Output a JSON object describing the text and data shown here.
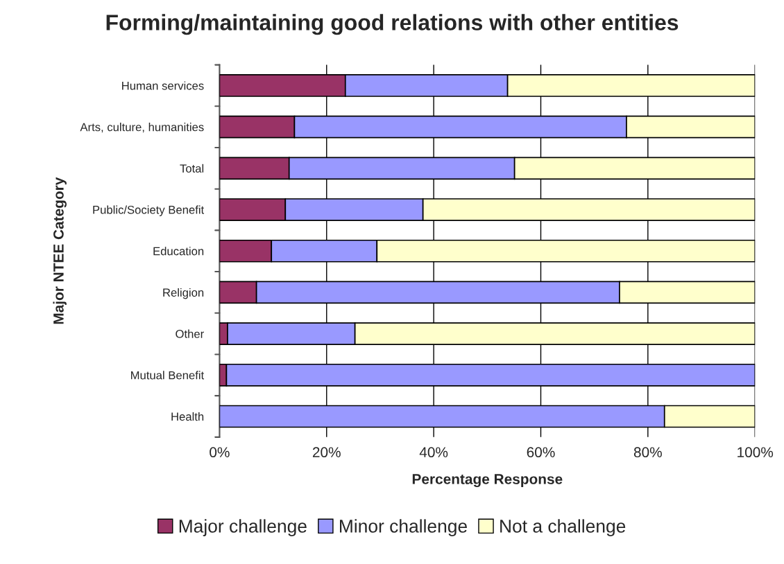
{
  "chart_data": {
    "type": "bar",
    "orientation": "horizontal",
    "stacked": true,
    "title": "Forming/maintaining good relations with other entities",
    "xlabel": "Percentage Response",
    "ylabel": "Major NTEE Category",
    "categories": [
      "Human services",
      "Arts, culture, humanities",
      "Total",
      "Public/Society Benefit",
      "Education",
      "Religion",
      "Other",
      "Mutual Benefit",
      "Health"
    ],
    "series": [
      {
        "name": "Major challenge",
        "color": "#993366",
        "values": [
          23.5,
          14.0,
          13.0,
          12.3,
          9.7,
          6.9,
          1.5,
          1.3,
          0
        ]
      },
      {
        "name": "Minor challenge",
        "color": "#9999ff",
        "values": [
          30.3,
          62.0,
          42.1,
          25.7,
          19.7,
          67.8,
          23.8,
          98.7,
          83.1
        ]
      },
      {
        "name": "Not a challenge",
        "color": "#ffffcc",
        "values": [
          46.2,
          24.0,
          44.9,
          62.0,
          70.6,
          25.3,
          74.7,
          0,
          16.9
        ]
      }
    ],
    "xlim": [
      0,
      100
    ],
    "xticks": [
      {
        "value": 0,
        "label": "0%"
      },
      {
        "value": 20,
        "label": "20%"
      },
      {
        "value": 40,
        "label": "40%"
      },
      {
        "value": 60,
        "label": "60%"
      },
      {
        "value": 80,
        "label": "80%"
      },
      {
        "value": 100,
        "label": "100%"
      }
    ],
    "grid": "x",
    "legend": "bottom"
  }
}
